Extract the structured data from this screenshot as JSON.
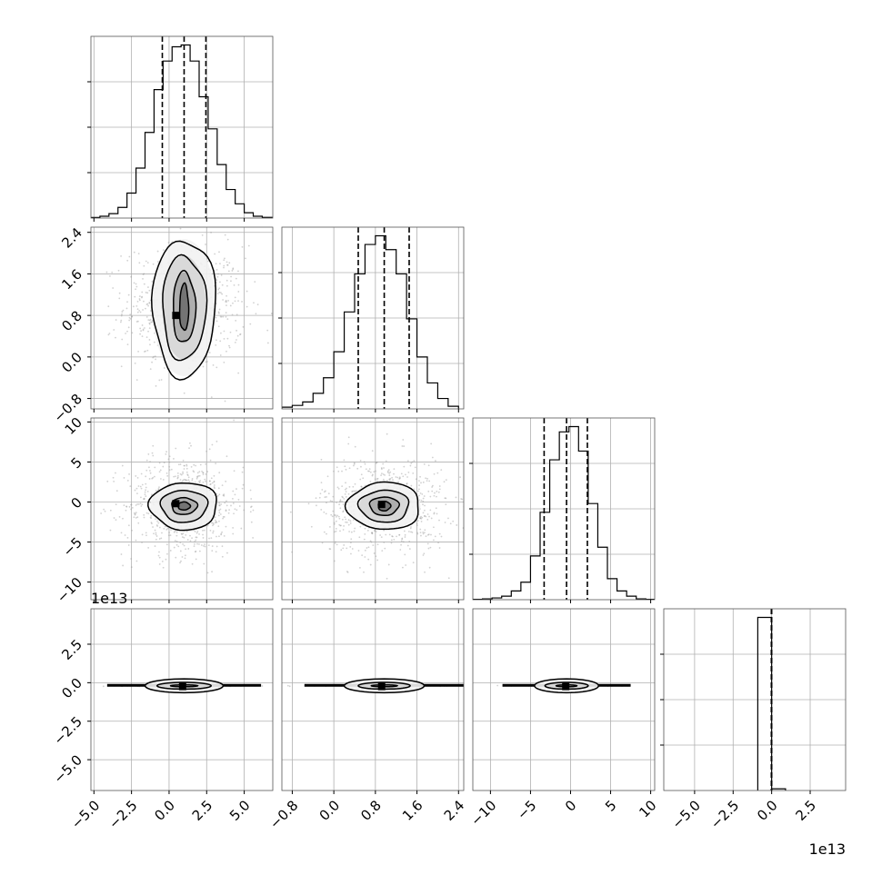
{
  "chart_data": {
    "type": "corner",
    "colors": {
      "line": "#000000",
      "grid": "#b0b0b0",
      "scatter": "#9a9a9a",
      "background": "#ffffff"
    },
    "grid": true,
    "axes_ranges": [
      [
        -5.2,
        6.9
      ],
      [
        -1.0,
        2.5
      ],
      [
        -12.2,
        10.5
      ],
      [
        -7.0,
        4.8
      ]
    ],
    "axis_offset_labels": [
      "",
      "",
      "",
      "1e13"
    ],
    "ticks": [
      {
        "values": [
          -5,
          -2.5,
          0,
          2.5,
          5
        ],
        "labels": [
          "−5.0",
          "−2.5",
          "0.0",
          "2.5",
          "5.0"
        ]
      },
      {
        "values": [
          -0.8,
          0,
          0.8,
          1.6,
          2.4
        ],
        "labels": [
          "−0.8",
          "0.0",
          "0.8",
          "1.6",
          "2.4"
        ]
      },
      {
        "values": [
          -10,
          -5,
          0,
          5,
          10
        ],
        "labels": [
          "−10",
          "−5",
          "0",
          "5",
          "10"
        ]
      },
      {
        "values": [
          -5,
          -2.5,
          0,
          2.5
        ],
        "labels": [
          "−5.0",
          "−2.5",
          "0.0",
          "2.5"
        ]
      }
    ],
    "histograms": [
      {
        "variable": 0,
        "bin_edges": [
          -5.2,
          -4.6,
          -4.0,
          -3.4,
          -2.8,
          -2.2,
          -1.6,
          -1.0,
          -0.4,
          0.2,
          0.8,
          1.4,
          2.0,
          2.6,
          3.2,
          3.8,
          4.4,
          5.0,
          5.6,
          6.2,
          6.9
        ],
        "counts": [
          0.3,
          1,
          2.5,
          6,
          14,
          28,
          48,
          72,
          88,
          96,
          97,
          88,
          68,
          50,
          30,
          16,
          8,
          3,
          1,
          0.4
        ],
        "quantiles": [
          -0.45,
          1.0,
          2.45
        ]
      },
      {
        "variable": 1,
        "bin_edges": [
          -1.0,
          -0.8,
          -0.6,
          -0.4,
          -0.2,
          0.0,
          0.2,
          0.4,
          0.6,
          0.8,
          1.0,
          1.2,
          1.4,
          1.6,
          1.8,
          2.0,
          2.2,
          2.4
        ],
        "counts": [
          1,
          2,
          4,
          9,
          18,
          33,
          56,
          78,
          95,
          100,
          92,
          78,
          52,
          30,
          15,
          6,
          1.5
        ],
        "quantiles": [
          0.47,
          0.97,
          1.45
        ]
      },
      {
        "variable": 2,
        "bin_edges": [
          -12.2,
          -11.0,
          -9.8,
          -8.6,
          -7.4,
          -6.2,
          -5.0,
          -3.8,
          -2.6,
          -1.4,
          -0.2,
          1.0,
          2.2,
          3.4,
          4.6,
          5.8,
          7.0,
          8.2,
          9.4,
          10.5
        ],
        "counts": [
          0.2,
          0.5,
          1,
          2,
          5,
          10,
          25,
          50,
          80,
          96,
          99,
          85,
          55,
          30,
          12,
          5,
          2,
          0.5,
          0.2
        ],
        "quantiles": [
          -3.3,
          -0.5,
          2.1
        ]
      },
      {
        "variable": 3,
        "bin_edges": [
          -0.9,
          0.0,
          0.9
        ],
        "counts": [
          100,
          1
        ],
        "quantiles": [
          -0.02,
          -0.01,
          0.0
        ]
      }
    ],
    "pairs": [
      {
        "x": 0,
        "y": 1,
        "center": [
          1.0,
          0.95
        ],
        "spread": [
          1.6,
          0.48
        ],
        "levels": [
          [
            0.3,
            0.45
          ],
          [
            0.75,
            0.68
          ],
          [
            1.45,
            1.0
          ],
          [
            2.1,
            1.32
          ]
        ],
        "peak": [
          0.45,
          0.8
        ]
      },
      {
        "x": 0,
        "y": 2,
        "center": [
          1.0,
          -0.5
        ],
        "spread": [
          1.6,
          2.5
        ],
        "levels": [
          [
            0.4,
            0.5
          ],
          [
            0.85,
            1.05
          ],
          [
            1.55,
            2.0
          ],
          [
            2.25,
            2.95
          ]
        ],
        "peak": [
          0.45,
          -0.2
        ]
      },
      {
        "x": 1,
        "y": 2,
        "center": [
          0.97,
          -0.5
        ],
        "spread": [
          0.48,
          2.5
        ],
        "levels": [
          [
            0.12,
            0.6
          ],
          [
            0.28,
            1.15
          ],
          [
            0.48,
            2.0
          ],
          [
            0.7,
            2.95
          ]
        ],
        "peak": [
          0.92,
          -0.3
        ]
      },
      {
        "x": 0,
        "y": 3,
        "center": [
          1.0,
          -0.2
        ],
        "spread": [
          1.6,
          0.02
        ],
        "levels": [
          [
            0.9,
            0.06
          ],
          [
            1.8,
            0.22
          ],
          [
            2.6,
            0.45
          ]
        ],
        "peak": [
          0.9,
          -0.25
        ],
        "band": true
      },
      {
        "x": 1,
        "y": 3,
        "center": [
          0.97,
          -0.2
        ],
        "spread": [
          0.48,
          0.02
        ],
        "levels": [
          [
            0.25,
            0.06
          ],
          [
            0.5,
            0.22
          ],
          [
            0.77,
            0.45
          ]
        ],
        "peak": [
          0.92,
          -0.25
        ],
        "band": true
      },
      {
        "x": 2,
        "y": 3,
        "center": [
          -0.5,
          -0.2
        ],
        "spread": [
          2.5,
          0.02
        ],
        "levels": [
          [
            1.3,
            0.06
          ],
          [
            2.7,
            0.22
          ],
          [
            4.0,
            0.45
          ]
        ],
        "peak": [
          -0.6,
          -0.25
        ],
        "band": true
      }
    ]
  }
}
